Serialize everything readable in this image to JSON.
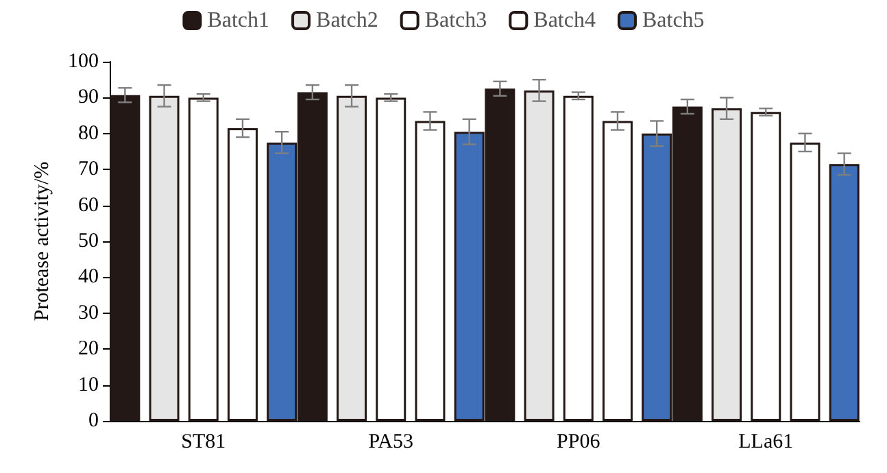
{
  "chart_data": {
    "type": "bar",
    "ylabel": "Protease activity/%",
    "categories": [
      "ST81",
      "PA53",
      "PP06",
      "LLa61"
    ],
    "series": [
      {
        "name": "Batch1",
        "color": "#231815",
        "values": [
          90.7,
          91.5,
          92.5,
          87.5
        ],
        "errors": [
          2,
          2,
          2,
          2
        ]
      },
      {
        "name": "Batch2",
        "color": "#e5e5e5",
        "values": [
          90.5,
          90.5,
          92,
          87
        ],
        "errors": [
          3,
          3,
          3,
          3
        ]
      },
      {
        "name": "Batch3",
        "color": "#ffffff",
        "values": [
          90,
          90,
          90.5,
          86
        ],
        "errors": [
          1,
          1,
          1,
          1
        ]
      },
      {
        "name": "Batch4",
        "color": "#ffffff",
        "values": [
          81.5,
          83.5,
          83.5,
          77.5
        ],
        "errors": [
          2.5,
          2.5,
          2.5,
          2.5
        ]
      },
      {
        "name": "Batch5",
        "color": "#3f6fb9",
        "values": [
          77.5,
          80.5,
          80,
          71.5
        ],
        "errors": [
          3,
          3.5,
          3.5,
          3
        ]
      }
    ],
    "ylim": [
      0,
      100
    ],
    "yticks": [
      0,
      10,
      20,
      30,
      40,
      50,
      60,
      70,
      80,
      90,
      100
    ],
    "grid": false,
    "legend": "top"
  }
}
